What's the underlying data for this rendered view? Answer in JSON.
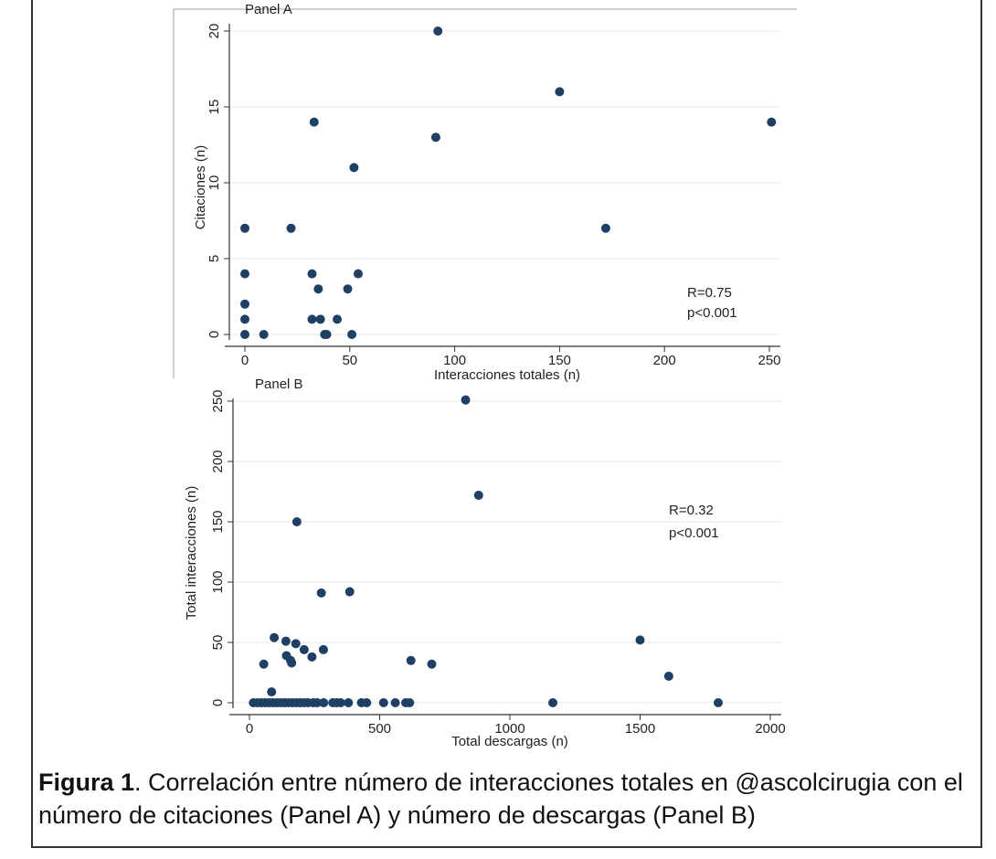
{
  "chart_data": [
    {
      "type": "scatter",
      "title": "Panel A",
      "xlabel": "Interacciones totales (n)",
      "ylabel": "Citaciones (n)",
      "xlim": [
        0,
        250
      ],
      "ylim": [
        0,
        20
      ],
      "xticks": [
        0,
        50,
        100,
        150,
        200,
        250
      ],
      "yticks": [
        0,
        5,
        10,
        15,
        20
      ],
      "grid": "horizontal",
      "annotations": [
        "R=0.75",
        "p<0.001"
      ],
      "points": [
        {
          "x": 92,
          "y": 20
        },
        {
          "x": 150,
          "y": 16
        },
        {
          "x": 33,
          "y": 14
        },
        {
          "x": 251,
          "y": 14
        },
        {
          "x": 91,
          "y": 13
        },
        {
          "x": 52,
          "y": 11
        },
        {
          "x": 0,
          "y": 7
        },
        {
          "x": 22,
          "y": 7
        },
        {
          "x": 172,
          "y": 7
        },
        {
          "x": 0,
          "y": 4
        },
        {
          "x": 32,
          "y": 4
        },
        {
          "x": 54,
          "y": 4
        },
        {
          "x": 35,
          "y": 3
        },
        {
          "x": 49,
          "y": 3
        },
        {
          "x": 0,
          "y": 2
        },
        {
          "x": 0,
          "y": 1
        },
        {
          "x": 32,
          "y": 1
        },
        {
          "x": 36,
          "y": 1
        },
        {
          "x": 44,
          "y": 1
        },
        {
          "x": 0,
          "y": 0
        },
        {
          "x": 9,
          "y": 0
        },
        {
          "x": 38,
          "y": 0
        },
        {
          "x": 39,
          "y": 0
        },
        {
          "x": 51,
          "y": 0
        }
      ]
    },
    {
      "type": "scatter",
      "title": "Panel B",
      "xlabel": "Total descargas (n)",
      "ylabel": "Total interacciones (n)",
      "xlim": [
        0,
        2000
      ],
      "ylim": [
        0,
        250
      ],
      "xticks": [
        0,
        500,
        1000,
        1500,
        2000
      ],
      "yticks": [
        0,
        50,
        100,
        150,
        200,
        250
      ],
      "grid": "horizontal",
      "annotations": [
        "R=0.32",
        "p<0.001"
      ],
      "points": [
        {
          "x": 830,
          "y": 251
        },
        {
          "x": 880,
          "y": 172
        },
        {
          "x": 182,
          "y": 150
        },
        {
          "x": 276,
          "y": 91
        },
        {
          "x": 385,
          "y": 92
        },
        {
          "x": 95,
          "y": 54
        },
        {
          "x": 140,
          "y": 51
        },
        {
          "x": 178,
          "y": 49
        },
        {
          "x": 1500,
          "y": 52
        },
        {
          "x": 210,
          "y": 44
        },
        {
          "x": 284,
          "y": 44
        },
        {
          "x": 142,
          "y": 39
        },
        {
          "x": 240,
          "y": 38
        },
        {
          "x": 158,
          "y": 35
        },
        {
          "x": 162,
          "y": 33
        },
        {
          "x": 55,
          "y": 32
        },
        {
          "x": 620,
          "y": 35
        },
        {
          "x": 700,
          "y": 32
        },
        {
          "x": 1610,
          "y": 22
        },
        {
          "x": 85,
          "y": 9
        },
        {
          "x": 15,
          "y": 0
        },
        {
          "x": 30,
          "y": 0
        },
        {
          "x": 45,
          "y": 0
        },
        {
          "x": 60,
          "y": 0
        },
        {
          "x": 75,
          "y": 0
        },
        {
          "x": 90,
          "y": 0
        },
        {
          "x": 105,
          "y": 0
        },
        {
          "x": 120,
          "y": 0
        },
        {
          "x": 135,
          "y": 0
        },
        {
          "x": 150,
          "y": 0
        },
        {
          "x": 165,
          "y": 0
        },
        {
          "x": 180,
          "y": 0
        },
        {
          "x": 195,
          "y": 0
        },
        {
          "x": 210,
          "y": 0
        },
        {
          "x": 225,
          "y": 0
        },
        {
          "x": 245,
          "y": 0
        },
        {
          "x": 260,
          "y": 0
        },
        {
          "x": 285,
          "y": 0
        },
        {
          "x": 320,
          "y": 0
        },
        {
          "x": 335,
          "y": 0
        },
        {
          "x": 350,
          "y": 0
        },
        {
          "x": 380,
          "y": 0
        },
        {
          "x": 430,
          "y": 0
        },
        {
          "x": 450,
          "y": 0
        },
        {
          "x": 515,
          "y": 0
        },
        {
          "x": 560,
          "y": 0
        },
        {
          "x": 600,
          "y": 0
        },
        {
          "x": 615,
          "y": 0
        },
        {
          "x": 1165,
          "y": 0
        },
        {
          "x": 1800,
          "y": 0
        }
      ]
    }
  ],
  "caption": {
    "label": "Figura 1",
    "text": ". Correlación entre número de interacciones totales en @ascolcirugia con el número de citaciones (Panel A) y número de descargas (Panel B)"
  },
  "colors": {
    "point": "#1f3f64",
    "grid": "#e3e8ee",
    "axis": "#333333",
    "text": "#222222"
  }
}
